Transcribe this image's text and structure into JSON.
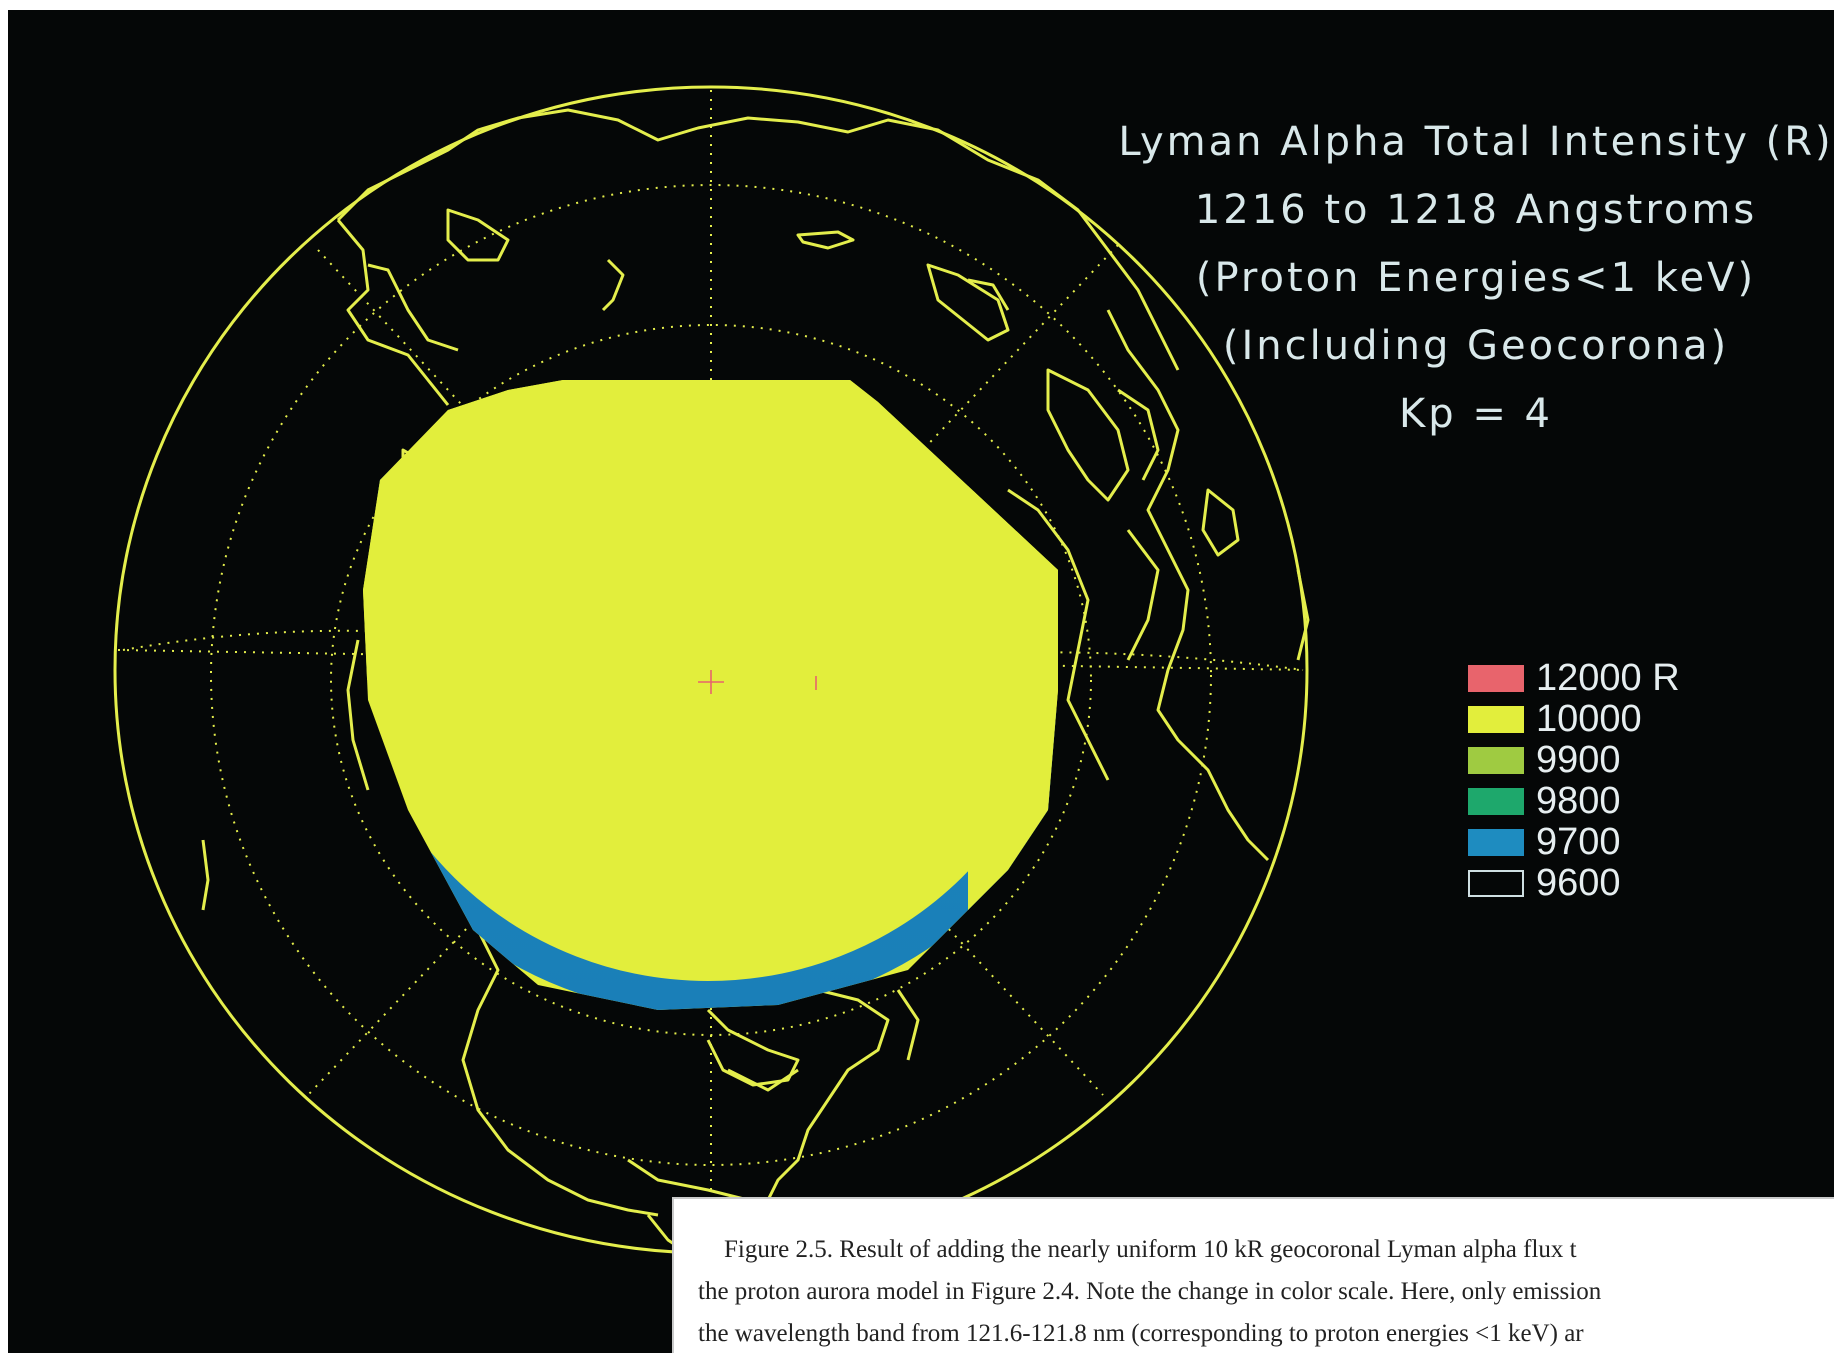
{
  "title_lines": [
    "Lyman Alpha Total Intensity (R)",
    "1216 to 1218 Angstroms",
    "(Proton Energies<1 keV)",
    "(Including Geocorona)",
    "Kp = 4"
  ],
  "legend": [
    {
      "label": "12000 R",
      "color": "#e8646c"
    },
    {
      "label": "10000",
      "color": "#e2ee3c"
    },
    {
      "label": "9900",
      "color": "#9fcb41"
    },
    {
      "label": "9800",
      "color": "#1ea86c"
    },
    {
      "label": "9700",
      "color": "#1e8cc0"
    },
    {
      "label": "9600",
      "color": "none"
    }
  ],
  "caption_lines": [
    "Figure 2.5. Result of adding the nearly uniform 10 kR geocoronal Lyman alpha flux t",
    "the proton aurora model in Figure 2.4. Note the change in color scale. Here, only emission",
    "the wavelength band from 121.6-121.8 nm (corresponding to proton energies <1 keV) ar"
  ],
  "colors": {
    "background": "#050707",
    "coastline": "#e4ee4c",
    "emission": "#e2ee3c",
    "edge_blue": "#1e8cc0",
    "text": "#d9e8ea"
  }
}
